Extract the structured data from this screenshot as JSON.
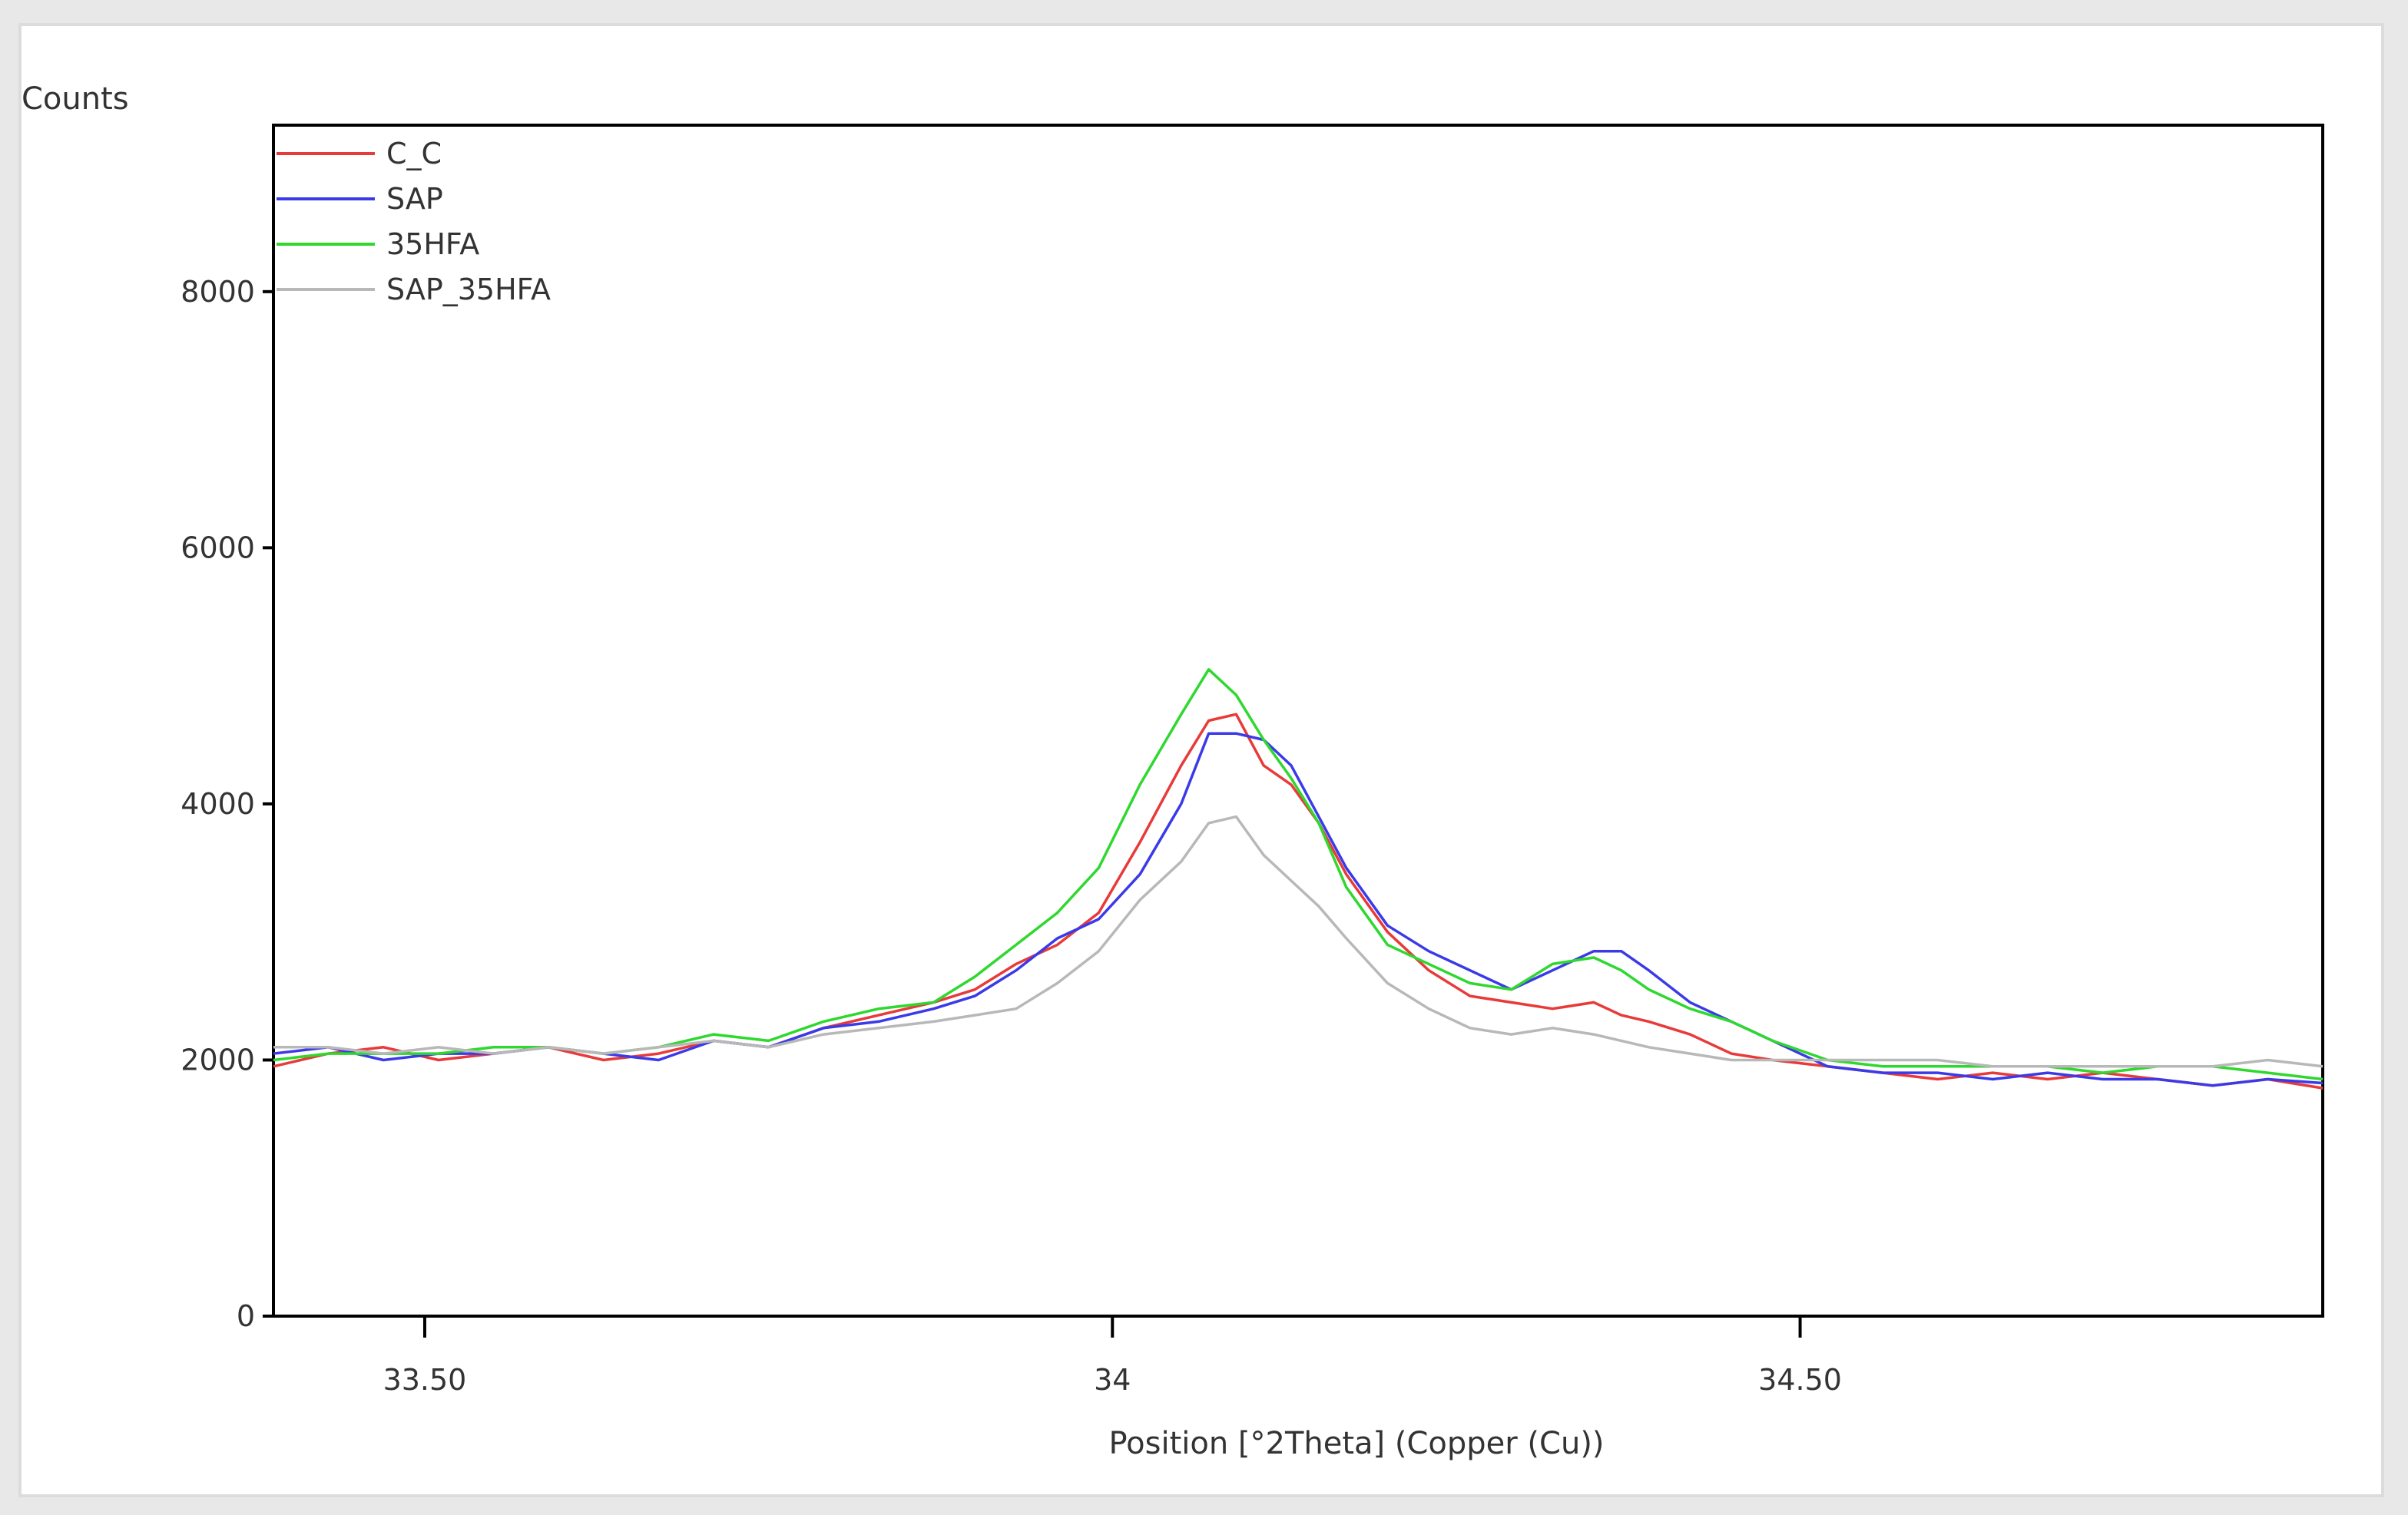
{
  "chart_data": {
    "type": "line",
    "title": "",
    "ylabel": "Counts",
    "xlabel": "Position [°2Theta] (Copper (Cu))",
    "xlim": [
      33.39,
      34.88
    ],
    "ylim": [
      0,
      9300
    ],
    "x_ticks": [
      33.5,
      34.0,
      34.5
    ],
    "x_tick_labels": [
      "33.50",
      "34",
      "34.50"
    ],
    "y_ticks": [
      0,
      2000,
      4000,
      6000,
      8000
    ],
    "y_tick_labels": [
      "0",
      "2000",
      "4000",
      "6000",
      "8000"
    ],
    "grid": false,
    "legend_position": "top-left",
    "x": [
      33.39,
      33.43,
      33.47,
      33.51,
      33.55,
      33.59,
      33.63,
      33.67,
      33.71,
      33.75,
      33.79,
      33.83,
      33.87,
      33.9,
      33.93,
      33.96,
      33.99,
      34.02,
      34.05,
      34.07,
      34.09,
      34.11,
      34.13,
      34.15,
      34.17,
      34.2,
      34.23,
      34.26,
      34.29,
      34.32,
      34.35,
      34.37,
      34.39,
      34.42,
      34.45,
      34.48,
      34.52,
      34.56,
      34.6,
      34.64,
      34.68,
      34.72,
      34.76,
      34.8,
      34.84,
      34.88
    ],
    "series": [
      {
        "name": "C_C",
        "color": "#e83a3a",
        "values": [
          1950,
          2050,
          2100,
          2000,
          2050,
          2100,
          2000,
          2050,
          2150,
          2100,
          2250,
          2350,
          2450,
          2550,
          2750,
          2900,
          3150,
          3700,
          4300,
          4650,
          4700,
          4300,
          4150,
          3850,
          3450,
          3000,
          2700,
          2500,
          2450,
          2400,
          2450,
          2350,
          2300,
          2200,
          2050,
          2000,
          1950,
          1900,
          1850,
          1900,
          1850,
          1900,
          1850,
          1800,
          1850,
          1780
        ]
      },
      {
        "name": "SAP",
        "color": "#3a3ae8",
        "values": [
          2050,
          2100,
          2000,
          2050,
          2050,
          2100,
          2050,
          2000,
          2150,
          2100,
          2250,
          2300,
          2400,
          2500,
          2700,
          2950,
          3100,
          3450,
          4000,
          4550,
          4550,
          4500,
          4300,
          3900,
          3500,
          3050,
          2850,
          2700,
          2550,
          2700,
          2850,
          2850,
          2700,
          2450,
          2300,
          2150,
          1950,
          1900,
          1900,
          1850,
          1900,
          1850,
          1850,
          1800,
          1850,
          1820
        ]
      },
      {
        "name": "35HFA",
        "color": "#2fd82f",
        "values": [
          2000,
          2050,
          2050,
          2050,
          2100,
          2100,
          2050,
          2100,
          2200,
          2150,
          2300,
          2400,
          2450,
          2650,
          2900,
          3150,
          3500,
          4150,
          4700,
          5050,
          4850,
          4500,
          4200,
          3850,
          3350,
          2900,
          2750,
          2600,
          2550,
          2750,
          2800,
          2700,
          2550,
          2400,
          2300,
          2150,
          2000,
          1950,
          1950,
          1950,
          1950,
          1900,
          1950,
          1950,
          1900,
          1850
        ]
      },
      {
        "name": "SAP_35HFA",
        "color": "#b8b8b8",
        "values": [
          2100,
          2100,
          2050,
          2100,
          2050,
          2100,
          2050,
          2100,
          2150,
          2100,
          2200,
          2250,
          2300,
          2350,
          2400,
          2600,
          2850,
          3250,
          3550,
          3850,
          3900,
          3600,
          3400,
          3200,
          2950,
          2600,
          2400,
          2250,
          2200,
          2250,
          2200,
          2150,
          2100,
          2050,
          2000,
          2000,
          2000,
          2000,
          2000,
          1950,
          1950,
          1950,
          1950,
          1950,
          2000,
          1950
        ]
      }
    ]
  }
}
